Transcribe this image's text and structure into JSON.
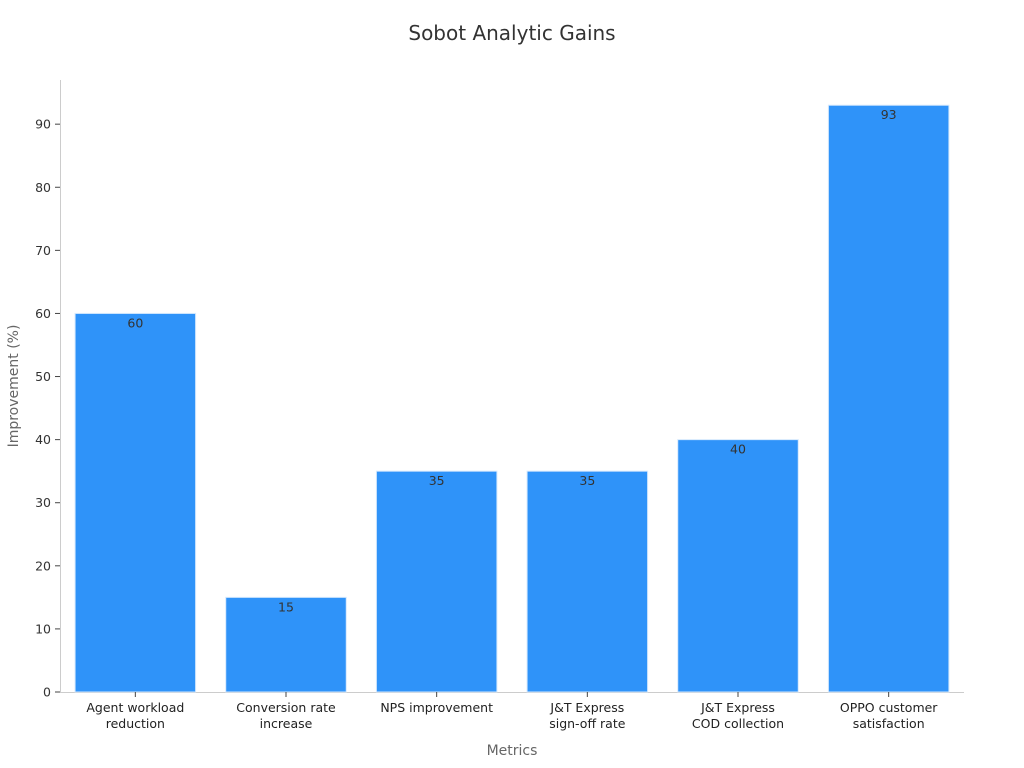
{
  "chart_data": {
    "type": "bar",
    "title": "Sobot Analytic Gains",
    "xlabel": "Metrics",
    "ylabel": "Improvement (%)",
    "categories": [
      [
        "Agent workload",
        "reduction"
      ],
      [
        "Conversion rate",
        "increase"
      ],
      [
        "NPS improvement"
      ],
      [
        "J&T Express",
        "sign-off rate"
      ],
      [
        "J&T Express",
        "COD collection"
      ],
      [
        "OPPO customer",
        "satisfaction"
      ]
    ],
    "values": [
      60,
      15,
      35,
      35,
      40,
      93
    ],
    "data_labels": [
      "60",
      "15",
      "35",
      "35",
      "40",
      "93"
    ],
    "ylim": [
      0,
      97
    ],
    "yticks": [
      "0",
      "10",
      "20",
      "30",
      "40",
      "50",
      "60",
      "70",
      "80",
      "90"
    ],
    "bar_color": "#2f93f9",
    "grid": false,
    "legend": "none"
  }
}
